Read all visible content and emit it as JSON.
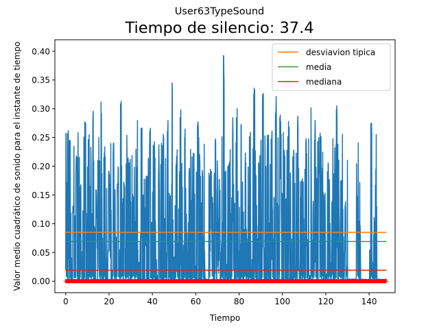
{
  "chart_data": {
    "type": "line",
    "suptitle": "User63TypeSound",
    "title": "Tiempo de silencio: 37.4",
    "xlabel": "Tiempo",
    "ylabel": "Valor medio cuadrático de sonido para el instante de tiempo",
    "xlim": [
      -5,
      152
    ],
    "ylim": [
      -0.02,
      0.42
    ],
    "xticks": [
      0,
      20,
      40,
      60,
      80,
      100,
      120,
      140
    ],
    "yticks": [
      0.0,
      0.05,
      0.1,
      0.15,
      0.2,
      0.25,
      0.3,
      0.35,
      0.4
    ],
    "ytick_labels": [
      "0.00",
      "0.05",
      "0.10",
      "0.15",
      "0.20",
      "0.25",
      "0.30",
      "0.35",
      "0.40"
    ],
    "grid": false,
    "legend_position": "top-right",
    "series": [
      {
        "role": "signal",
        "color": "#1f77b4",
        "x_range": [
          0,
          148
        ],
        "peaks": [
          {
            "x": 1,
            "y": 0.265
          },
          {
            "x": 2,
            "y": 0.25
          },
          {
            "x": 3.5,
            "y": 0.14
          },
          {
            "x": 5,
            "y": 0.22
          },
          {
            "x": 7,
            "y": 0.18
          },
          {
            "x": 9,
            "y": 0.285
          },
          {
            "x": 11,
            "y": 0.175
          },
          {
            "x": 12.5,
            "y": 0.32
          },
          {
            "x": 14,
            "y": 0.16
          },
          {
            "x": 15,
            "y": 0.24
          },
          {
            "x": 16.5,
            "y": 0.33
          },
          {
            "x": 18,
            "y": 0.245
          },
          {
            "x": 20,
            "y": 0.2
          },
          {
            "x": 22,
            "y": 0.25
          },
          {
            "x": 24,
            "y": 0.18
          },
          {
            "x": 25.5,
            "y": 0.33
          },
          {
            "x": 27,
            "y": 0.18
          },
          {
            "x": 29,
            "y": 0.215
          },
          {
            "x": 31,
            "y": 0.15
          },
          {
            "x": 33,
            "y": 0.29
          },
          {
            "x": 35,
            "y": 0.27
          },
          {
            "x": 37,
            "y": 0.19
          },
          {
            "x": 39,
            "y": 0.28
          },
          {
            "x": 41,
            "y": 0.25
          },
          {
            "x": 43,
            "y": 0.2
          },
          {
            "x": 45,
            "y": 0.27
          },
          {
            "x": 47,
            "y": 0.29
          },
          {
            "x": 49,
            "y": 0.35
          },
          {
            "x": 51,
            "y": 0.23
          },
          {
            "x": 53,
            "y": 0.3
          },
          {
            "x": 55,
            "y": 0.29
          },
          {
            "x": 57,
            "y": 0.2
          },
          {
            "x": 59,
            "y": 0.26
          },
          {
            "x": 61,
            "y": 0.3
          },
          {
            "x": 63,
            "y": 0.21
          },
          {
            "x": 65,
            "y": 0.29
          },
          {
            "x": 67,
            "y": 0.2
          },
          {
            "x": 69,
            "y": 0.27
          },
          {
            "x": 71,
            "y": 0.18
          },
          {
            "x": 73,
            "y": 0.395
          },
          {
            "x": 75,
            "y": 0.23
          },
          {
            "x": 77,
            "y": 0.29
          },
          {
            "x": 79,
            "y": 0.31
          },
          {
            "x": 81,
            "y": 0.3
          },
          {
            "x": 83,
            "y": 0.23
          },
          {
            "x": 85,
            "y": 0.27
          },
          {
            "x": 87,
            "y": 0.34
          },
          {
            "x": 89,
            "y": 0.22
          },
          {
            "x": 91,
            "y": 0.34
          },
          {
            "x": 93,
            "y": 0.26
          },
          {
            "x": 95,
            "y": 0.27
          },
          {
            "x": 97,
            "y": 0.33
          },
          {
            "x": 99,
            "y": 0.29
          },
          {
            "x": 101,
            "y": 0.23
          },
          {
            "x": 103,
            "y": 0.3
          },
          {
            "x": 105,
            "y": 0.23
          },
          {
            "x": 107,
            "y": 0.29
          },
          {
            "x": 109,
            "y": 0.2
          },
          {
            "x": 111,
            "y": 0.25
          },
          {
            "x": 113,
            "y": 0.33
          },
          {
            "x": 115,
            "y": 0.28
          },
          {
            "x": 117,
            "y": 0.2
          },
          {
            "x": 119,
            "y": 0.16
          },
          {
            "x": 121,
            "y": 0.22
          },
          {
            "x": 123,
            "y": 0.15
          },
          {
            "x": 125,
            "y": 0.32
          },
          {
            "x": 127,
            "y": 0.18
          },
          {
            "x": 129,
            "y": 0.14
          },
          {
            "x": 134.5,
            "y": 0.148
          },
          {
            "x": 141,
            "y": 0.3
          },
          {
            "x": 142.5,
            "y": 0.12
          }
        ],
        "silent_segments": [
          [
            64.5,
            66
          ],
          [
            130,
            134
          ],
          [
            136,
            140
          ],
          [
            143.5,
            148
          ]
        ]
      },
      {
        "name": "desviavion tipica",
        "color": "#ff7f0e",
        "x": [
          0,
          148
        ],
        "y": [
          0.085,
          0.085
        ]
      },
      {
        "name": "media",
        "color": "#2ca02c",
        "x": [
          0,
          148
        ],
        "y": [
          0.069,
          0.069
        ]
      },
      {
        "name": "mediana",
        "color": "#d62728",
        "x": [
          0,
          148
        ],
        "y": [
          0.019,
          0.019
        ]
      },
      {
        "role": "silence-markers",
        "color": "#ff0000",
        "marker": "+",
        "y": 0.0,
        "x_start": 0,
        "x_end": 148,
        "spacing": 0.3
      }
    ]
  }
}
